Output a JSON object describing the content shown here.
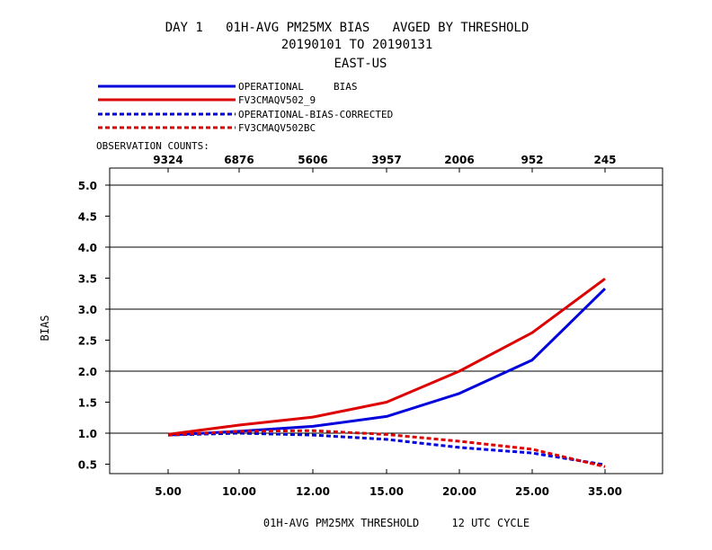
{
  "chart_data": {
    "type": "line",
    "title_lines": [
      "DAY 1   01H-AVG PM25MX BIAS   AVGED BY THRESHOLD",
      "20190101 TO 20190131",
      "EAST-US"
    ],
    "xlabel": "01H-AVG PM25MX THRESHOLD     12 UTC CYCLE",
    "ylabel": "BIAS",
    "x_categories": [
      "5.00",
      "10.00",
      "12.00",
      "15.00",
      "20.00",
      "25.00",
      "35.00"
    ],
    "yticks": [
      "0.5",
      "1.0",
      "1.5",
      "2.0",
      "2.5",
      "3.0",
      "3.5",
      "4.0",
      "4.5",
      "5.0"
    ],
    "ylim": [
      0.5,
      5.0
    ],
    "gridlines_y": [
      1.0,
      2.0,
      3.0,
      4.0,
      5.0
    ],
    "observation_counts_label": "OBSERVATION COUNTS:",
    "observation_counts": [
      "9324",
      "6876",
      "5606",
      "3957",
      "2006",
      "952",
      "245"
    ],
    "series": [
      {
        "name": "OPERATIONAL     BIAS",
        "color": "#0000dd",
        "dashed": false,
        "values": [
          0.97,
          1.03,
          1.11,
          1.27,
          1.64,
          2.18,
          3.33
        ]
      },
      {
        "name": "FV3CMAQV502_9",
        "color": "#dd0000",
        "dashed": false,
        "values": [
          0.98,
          1.13,
          1.26,
          1.5,
          2.0,
          2.62,
          3.49
        ]
      },
      {
        "name": "OPERATIONAL-BIAS-CORRECTED",
        "color": "#0000dd",
        "dashed": true,
        "values": [
          0.97,
          1.0,
          0.97,
          0.9,
          0.77,
          0.68,
          0.49
        ]
      },
      {
        "name": "FV3CMAQV502BC",
        "color": "#dd0000",
        "dashed": true,
        "values": [
          0.97,
          1.03,
          1.04,
          0.98,
          0.87,
          0.74,
          0.46
        ]
      }
    ]
  }
}
